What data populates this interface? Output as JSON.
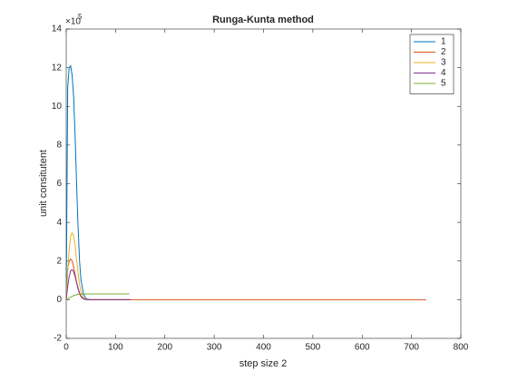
{
  "chart_data": {
    "type": "line",
    "title": "Runga-Kunta method",
    "x_label": "step size 2",
    "y_label": "unit consitutent",
    "y_multiplier_base": "×10",
    "y_multiplier_power": "5",
    "xlim": [
      0,
      800
    ],
    "xticks": [
      0,
      100,
      200,
      300,
      400,
      500,
      600,
      700,
      800
    ],
    "ylim": [
      -2,
      14
    ],
    "yticks": [
      -2,
      0,
      2,
      4,
      6,
      8,
      10,
      12,
      14
    ],
    "grid": false,
    "legend": "upper right",
    "series": [
      {
        "name": "1",
        "color": "#0072BD",
        "x": [
          0,
          3,
          6,
          9,
          12,
          15,
          18,
          21,
          24,
          27,
          30,
          35,
          40,
          50,
          60,
          80,
          100,
          130
        ],
        "values": [
          0,
          11.0,
          12.0,
          12.1,
          11.6,
          10.5,
          8.5,
          6.0,
          3.8,
          2.0,
          1.0,
          0.3,
          0.05,
          0,
          0,
          0,
          0,
          0
        ]
      },
      {
        "name": "2",
        "color": "#D95319",
        "x": [
          0,
          3,
          6,
          9,
          12,
          15,
          18,
          21,
          24,
          27,
          30,
          35,
          40,
          50,
          60,
          80,
          100,
          130,
          300,
          500,
          730
        ],
        "values": [
          0,
          1.6,
          2.0,
          2.1,
          2.0,
          1.7,
          1.3,
          0.9,
          0.55,
          0.3,
          0.15,
          0.04,
          0.01,
          0,
          0,
          0,
          0,
          0,
          0,
          0,
          0
        ]
      },
      {
        "name": "3",
        "color": "#EDB120",
        "x": [
          0,
          3,
          6,
          9,
          12,
          15,
          18,
          21,
          24,
          27,
          30,
          35,
          40,
          50,
          60,
          80,
          100,
          130
        ],
        "values": [
          0,
          1.5,
          2.6,
          3.3,
          3.45,
          3.3,
          2.8,
          2.1,
          1.4,
          0.8,
          0.4,
          0.1,
          0.02,
          0,
          0,
          0,
          0,
          0
        ]
      },
      {
        "name": "4",
        "color": "#7E2F8E",
        "x": [
          0,
          3,
          6,
          9,
          12,
          15,
          18,
          21,
          24,
          27,
          30,
          35,
          40,
          50,
          60,
          80,
          100,
          130
        ],
        "values": [
          0,
          0.7,
          1.2,
          1.5,
          1.55,
          1.45,
          1.2,
          0.9,
          0.6,
          0.35,
          0.18,
          0.05,
          0.01,
          0,
          0,
          0,
          0,
          0
        ]
      },
      {
        "name": "5",
        "color": "#77AC30",
        "x": [
          0,
          3,
          6,
          9,
          12,
          15,
          18,
          21,
          24,
          27,
          30,
          35,
          40,
          50,
          60,
          80,
          100,
          128
        ],
        "values": [
          0,
          0.05,
          0.1,
          0.14,
          0.18,
          0.21,
          0.24,
          0.26,
          0.28,
          0.29,
          0.3,
          0.3,
          0.3,
          0.3,
          0.3,
          0.3,
          0.3,
          0.3
        ]
      }
    ]
  }
}
